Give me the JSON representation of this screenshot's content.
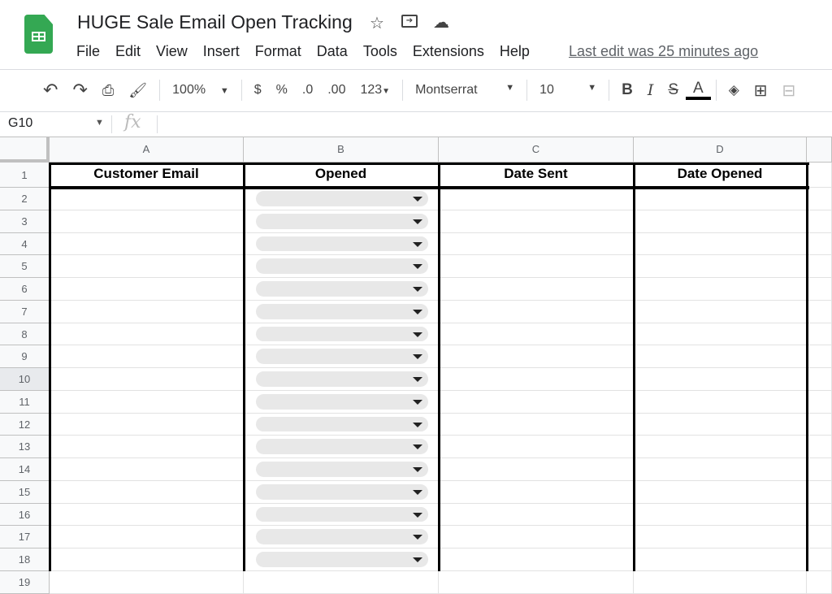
{
  "doc": {
    "title": "HUGE Sale Email Open Tracking",
    "last_edit": "Last edit was 25 minutes ago"
  },
  "menu": [
    "File",
    "Edit",
    "View",
    "Insert",
    "Format",
    "Data",
    "Tools",
    "Extensions",
    "Help"
  ],
  "toolbar": {
    "zoom": "100%",
    "currency": "$",
    "percent": "%",
    "dec_decrease": ".0",
    "dec_increase": ".00",
    "more_formats": "123",
    "font": "Montserrat",
    "font_size": "10",
    "bold": "B",
    "italic": "I",
    "strike": "S",
    "text_color": "A",
    "text_color_value": "#000000"
  },
  "formula_bar": {
    "name_box": "G10",
    "fx": "fx",
    "value": ""
  },
  "columns": [
    "A",
    "B",
    "C",
    "D"
  ],
  "headers": [
    "Customer Email",
    "Opened",
    "Date Sent",
    "Date Opened"
  ],
  "row_numbers": [
    "1",
    "2",
    "3",
    "4",
    "5",
    "6",
    "7",
    "8",
    "9",
    "10",
    "11",
    "12",
    "13",
    "14",
    "15",
    "16",
    "17",
    "18",
    "19"
  ],
  "selected_row": "10",
  "dropdown_column": "B",
  "dropdown_rows": "2-18"
}
